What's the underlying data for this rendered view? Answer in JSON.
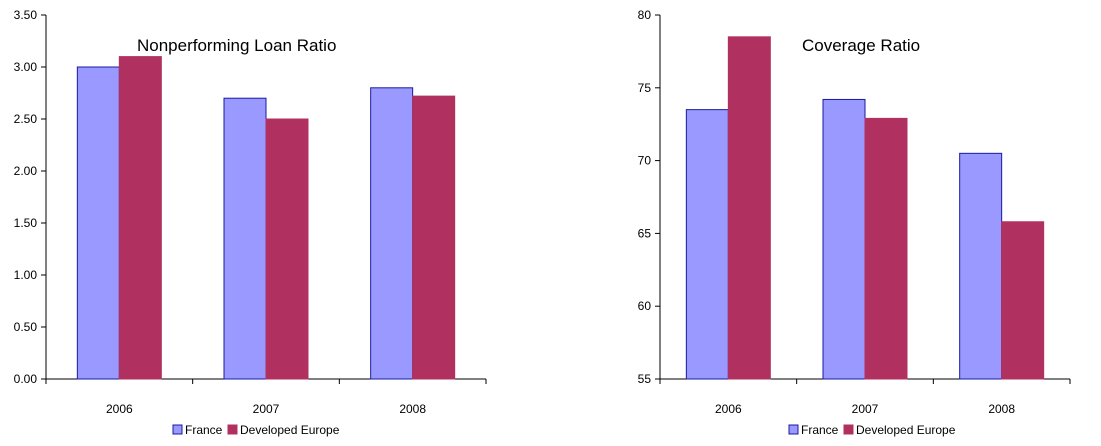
{
  "charts": [
    {
      "chart_data": {
        "type": "bar",
        "title": "Nonperforming Loan Ratio",
        "xlabel": "",
        "ylabel": "",
        "categories": [
          "2006",
          "2007",
          "2008"
        ],
        "series": [
          {
            "name": "France",
            "values": [
              3.0,
              2.7,
              2.8
            ],
            "color": "#9999ff"
          },
          {
            "name": "Developed Europe",
            "values": [
              3.1,
              2.5,
              2.72
            ],
            "color": "#b03060"
          }
        ],
        "ylim": [
          0,
          3.5
        ],
        "yticks": [
          "0.00",
          "0.50",
          "1.00",
          "1.50",
          "2.00",
          "2.50",
          "3.00",
          "3.50"
        ],
        "grid": false,
        "legend_position": "bottom"
      }
    },
    {
      "chart_data": {
        "type": "bar",
        "title": "Coverage Ratio",
        "xlabel": "",
        "ylabel": "",
        "categories": [
          "2006",
          "2007",
          "2008"
        ],
        "series": [
          {
            "name": "France",
            "values": [
              73.5,
              74.2,
              70.5
            ],
            "color": "#9999ff"
          },
          {
            "name": "Developed Europe",
            "values": [
              78.5,
              72.9,
              65.8
            ],
            "color": "#b03060"
          }
        ],
        "ylim": [
          55,
          80
        ],
        "yticks": [
          "55",
          "60",
          "65",
          "70",
          "75",
          "80"
        ],
        "grid": false,
        "legend_position": "bottom"
      }
    }
  ]
}
